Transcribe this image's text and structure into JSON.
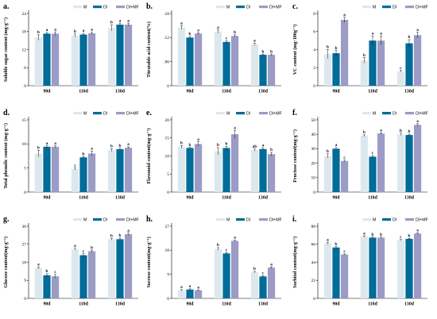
{
  "colors": {
    "M": "#dde8ee",
    "DI": "#006c99",
    "DI+MF": "#9b9bc6"
  },
  "chart_data": [
    {
      "letter": "a.",
      "type": "bar",
      "ylabel": "Soluble sugar content (mg·g⁻¹)",
      "ylim": [
        0,
        24
      ],
      "yticks": [
        0,
        6,
        12,
        18,
        24
      ],
      "categories": [
        "90d",
        "110d",
        "130d"
      ],
      "legend": [
        "M",
        "DI",
        "DI+MF"
      ],
      "series": [
        {
          "name": "M",
          "values": [
            16.0,
            16.7,
            19.2
          ],
          "errors": [
            0.9,
            0.5,
            1.0
          ]
        },
        {
          "name": "DI",
          "values": [
            17.3,
            17.0,
            20.3
          ],
          "errors": [
            0.4,
            0.4,
            0.5
          ]
        },
        {
          "name": "DI+MF",
          "values": [
            17.3,
            17.4,
            20.3
          ],
          "errors": [
            0.6,
            0.4,
            0.5
          ]
        }
      ],
      "labels": [
        [
          "b",
          "a",
          "a"
        ],
        [
          "b",
          "a",
          "a"
        ],
        [
          "b",
          "a",
          "a"
        ]
      ]
    },
    {
      "letter": "b.",
      "type": "bar",
      "ylabel": "Titratable acid content(%)",
      "ylim": [
        0,
        0.18
      ],
      "yticks": [
        0,
        0.06,
        0.12,
        0.18
      ],
      "categories": [
        "90d",
        "110d",
        "130d"
      ],
      "legend": [
        "M",
        "DI",
        "DI+MF"
      ],
      "series": [
        {
          "name": "M",
          "values": [
            0.145,
            0.135,
            0.103
          ],
          "errors": [
            0.005,
            0.004,
            0.003
          ]
        },
        {
          "name": "DI",
          "values": [
            0.12,
            0.109,
            0.077
          ],
          "errors": [
            0.003,
            0.003,
            0.002
          ]
        },
        {
          "name": "DI+MF",
          "values": [
            0.13,
            0.124,
            0.077
          ],
          "errors": [
            0.002,
            0.003,
            0.002
          ]
        }
      ],
      "labels": [
        [
          "a",
          "b",
          "a"
        ],
        [
          "a",
          "c",
          "b"
        ],
        [
          "a",
          "b",
          "b"
        ]
      ]
    },
    {
      "letter": "c.",
      "type": "bar",
      "ylabel": "VC content (mg·100g⁻¹)",
      "ylim": [
        0,
        8
      ],
      "yticks": [
        0,
        2,
        4,
        6,
        8
      ],
      "categories": [
        "90d",
        "110d",
        "130d"
      ],
      "legend": [
        "M",
        "DI",
        "DI+MF"
      ],
      "series": [
        {
          "name": "M",
          "values": [
            3.5,
            2.8,
            1.6
          ],
          "errors": [
            0.5,
            0.3,
            0.1
          ]
        },
        {
          "name": "DI",
          "values": [
            3.6,
            5.0,
            4.7
          ],
          "errors": [
            0.3,
            0.5,
            0.4
          ]
        },
        {
          "name": "DI+MF",
          "values": [
            7.3,
            5.0,
            5.6
          ],
          "errors": [
            0.3,
            0.5,
            0.3
          ]
        }
      ],
      "labels": [
        [
          "b",
          "b",
          "a"
        ],
        [
          "b",
          "a",
          "a"
        ],
        [
          "c",
          "b",
          "a"
        ]
      ]
    },
    {
      "letter": "d.",
      "type": "bar",
      "ylabel": "Total phenolic content (mg·g⁻¹)",
      "ylim": [
        0,
        15
      ],
      "yticks": [
        0,
        5,
        10,
        15
      ],
      "categories": [
        "90d",
        "110d",
        "130d"
      ],
      "legend": [
        "M",
        "DI",
        "DI+MF"
      ],
      "series": [
        {
          "name": "M",
          "values": [
            8.0,
            4.8,
            8.7
          ],
          "errors": [
            0.7,
            0.2,
            0.3
          ]
        },
        {
          "name": "DI",
          "values": [
            9.4,
            7.2,
            8.9
          ],
          "errors": [
            0.2,
            0.2,
            0.2
          ]
        },
        {
          "name": "DI+MF",
          "values": [
            9.4,
            8.0,
            9.2
          ],
          "errors": [
            0.2,
            0.5,
            0.2
          ]
        }
      ],
      "labels": [
        [
          "b",
          "a",
          "a"
        ],
        [
          "c",
          "b",
          "a"
        ],
        [
          "b",
          "b",
          "a"
        ]
      ]
    },
    {
      "letter": "e.",
      "type": "bar",
      "ylabel": "Flavonoid content(mg·g⁻¹)",
      "ylim": [
        0,
        20
      ],
      "yticks": [
        0,
        5,
        10,
        15,
        20
      ],
      "categories": [
        "90d",
        "110d",
        "130d"
      ],
      "legend": [
        "M",
        "DI",
        "DI+MF"
      ],
      "series": [
        {
          "name": "M",
          "values": [
            12.5,
            11.3,
            11.6
          ],
          "errors": [
            0.4,
            1.0,
            0.3
          ]
        },
        {
          "name": "DI",
          "values": [
            12.2,
            12.2,
            11.9
          ],
          "errors": [
            0.2,
            0.5,
            0.3
          ]
        },
        {
          "name": "DI+MF",
          "values": [
            13.3,
            16.0,
            10.5
          ],
          "errors": [
            0.6,
            1.1,
            0.5
          ]
        }
      ],
      "labels": [
        [
          "b",
          "b",
          "a"
        ],
        [
          "b",
          "b",
          "a"
        ],
        [
          "ab",
          "a",
          "b"
        ]
      ]
    },
    {
      "letter": "f.",
      "type": "bar",
      "ylabel": "Fructose content(mg·g⁻¹)",
      "ylim": [
        0,
        50
      ],
      "yticks": [
        0,
        10,
        20,
        30,
        40,
        50
      ],
      "categories": [
        "90d",
        "110d",
        "130d"
      ],
      "legend": [
        "M",
        "DI",
        "DI+MF"
      ],
      "series": [
        {
          "name": "M",
          "values": [
            25.0,
            39.0,
            40.0
          ],
          "errors": [
            1.5,
            0.6,
            0.8
          ]
        },
        {
          "name": "DI",
          "values": [
            30.0,
            24.5,
            39.5
          ],
          "errors": [
            0.8,
            0.8,
            0.6
          ]
        },
        {
          "name": "DI+MF",
          "values": [
            21.5,
            40.5,
            46.5
          ],
          "errors": [
            0.6,
            0.5,
            0.8
          ]
        }
      ],
      "labels": [
        [
          "b",
          "a",
          "c"
        ],
        [
          "b",
          "c",
          "a"
        ],
        [
          "b",
          "b",
          "a"
        ]
      ]
    },
    {
      "letter": "g.",
      "type": "bar",
      "ylabel": "Glucose content(mg·g⁻¹)",
      "ylim": [
        0,
        36
      ],
      "yticks": [
        0,
        9,
        18,
        27,
        36
      ],
      "categories": [
        "90d",
        "110d",
        "130d"
      ],
      "legend": [
        "M",
        "DI",
        "DI+MF"
      ],
      "series": [
        {
          "name": "M",
          "values": [
            15.2,
            24.5,
            29.5
          ],
          "errors": [
            0.5,
            0.5,
            0.5
          ]
        },
        {
          "name": "DI",
          "values": [
            11.5,
            21.5,
            29.5
          ],
          "errors": [
            0.8,
            0.8,
            0.6
          ]
        },
        {
          "name": "DI+MF",
          "values": [
            11.0,
            23.5,
            32.0
          ],
          "errors": [
            0.9,
            0.6,
            0.6
          ]
        }
      ],
      "labels": [
        [
          "a",
          "b",
          "c"
        ],
        [
          "a",
          "c",
          "b"
        ],
        [
          "b",
          "b",
          "a"
        ]
      ]
    },
    {
      "letter": "h.",
      "type": "bar",
      "ylabel": "Sucrose content(mg·g⁻¹)",
      "ylim": [
        0,
        27
      ],
      "yticks": [
        0,
        9,
        18,
        27
      ],
      "categories": [
        "90d",
        "110d",
        "130d"
      ],
      "legend": [
        "M",
        "DI",
        "DI+MF"
      ],
      "series": [
        {
          "name": "M",
          "values": [
            3.0,
            18.5,
            9.8
          ],
          "errors": [
            0.3,
            0.5,
            0.3
          ]
        },
        {
          "name": "DI",
          "values": [
            3.3,
            16.8,
            8.2
          ],
          "errors": [
            0.3,
            0.3,
            0.3
          ]
        },
        {
          "name": "DI+MF",
          "values": [
            3.0,
            21.5,
            11.5
          ],
          "errors": [
            0.2,
            0.3,
            0.3
          ]
        }
      ],
      "labels": [
        [
          "a",
          "a",
          "a"
        ],
        [
          "b",
          "c",
          "a"
        ],
        [
          "b",
          "c",
          "a"
        ]
      ]
    },
    {
      "letter": "i.",
      "type": "bar",
      "ylabel": "Sorbitol content(mg·g⁻¹)",
      "ylim": [
        0,
        88
      ],
      "yticks": [
        0,
        22,
        44,
        66,
        88
      ],
      "categories": [
        "90d",
        "110d",
        "130d"
      ],
      "legend": [
        "M",
        "DI",
        "DI+MF"
      ],
      "series": [
        {
          "name": "M",
          "values": [
            67.0,
            75.5,
            71.0
          ],
          "errors": [
            1.5,
            0.8,
            0.8
          ]
        },
        {
          "name": "DI",
          "values": [
            62.0,
            74.0,
            72.5
          ],
          "errors": [
            1.2,
            0.8,
            0.7
          ]
        },
        {
          "name": "DI+MF",
          "values": [
            53.5,
            74.0,
            79.0
          ],
          "errors": [
            0.9,
            0.8,
            0.9
          ]
        }
      ],
      "labels": [
        [
          "a",
          "b",
          "c"
        ],
        [
          "a",
          "b",
          "b"
        ],
        [
          "c",
          "b",
          "a"
        ]
      ]
    }
  ]
}
